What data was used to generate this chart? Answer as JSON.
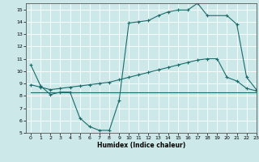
{
  "title": "",
  "xlabel": "Humidex (Indice chaleur)",
  "xlim": [
    -0.5,
    23
  ],
  "ylim": [
    5,
    15.5
  ],
  "yticks": [
    5,
    6,
    7,
    8,
    9,
    10,
    11,
    12,
    13,
    14,
    15
  ],
  "xticks": [
    0,
    1,
    2,
    3,
    4,
    5,
    6,
    7,
    8,
    9,
    10,
    11,
    12,
    13,
    14,
    15,
    16,
    17,
    18,
    19,
    20,
    21,
    22,
    23
  ],
  "bg_color": "#cce8e8",
  "line_color": "#1a6b6b",
  "grid_color": "#ffffff",
  "line1_x": [
    0,
    1,
    2,
    3,
    4,
    5,
    6,
    7,
    8,
    9,
    10,
    11,
    12,
    13,
    14,
    15,
    16,
    17,
    18,
    20,
    21,
    22,
    23
  ],
  "line1_y": [
    10.5,
    8.8,
    8.1,
    8.3,
    8.3,
    6.2,
    5.5,
    5.2,
    5.2,
    7.6,
    13.9,
    14.0,
    14.1,
    14.5,
    14.8,
    14.95,
    14.95,
    15.5,
    14.5,
    14.5,
    13.8,
    9.5,
    8.5
  ],
  "line2_x": [
    0,
    1,
    2,
    3,
    4,
    5,
    6,
    7,
    8,
    9,
    10,
    11,
    12,
    13,
    14,
    15,
    16,
    17,
    18,
    19,
    20,
    21,
    22,
    23
  ],
  "line2_y": [
    8.9,
    8.7,
    8.5,
    8.6,
    8.7,
    8.8,
    8.9,
    9.0,
    9.1,
    9.3,
    9.5,
    9.7,
    9.9,
    10.1,
    10.3,
    10.5,
    10.7,
    10.9,
    11.0,
    11.0,
    9.5,
    9.2,
    8.6,
    8.4
  ],
  "line3_x": [
    0,
    23
  ],
  "line3_y": [
    8.3,
    8.3
  ]
}
